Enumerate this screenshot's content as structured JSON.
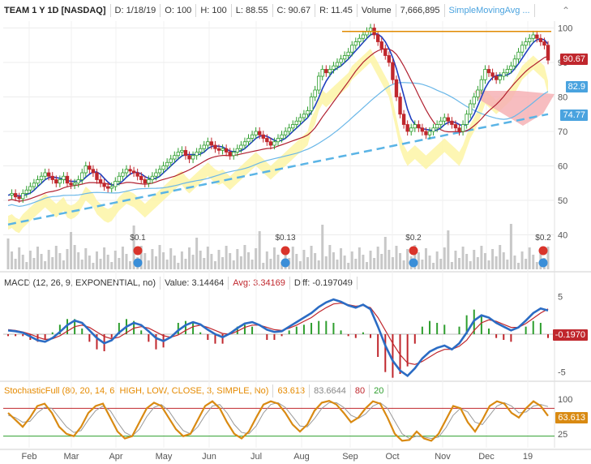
{
  "main_header": {
    "symbol": "TEAM 1 Y 1D [NASDAQ]",
    "date": "D: 1/18/19",
    "open": "O: 100",
    "high": "H: 100",
    "low": "L: 88.55",
    "close": "C: 90.67",
    "range": "R: 11.45",
    "volume_label": "Volume",
    "volume_value": "7,666,895",
    "sma_label": "SimpleMovingAvg ..."
  },
  "macd_header": {
    "study": "MACD (12, 26, 9, EXPONENTIAL, no)",
    "value": "Value: 3.14464",
    "avg": "Avg: 3.34169",
    "diff": "Diff: -0.197049"
  },
  "stoch_header": {
    "study": "StochasticFull (80, 20, 14, 6, HIGH, LOW, CLOSE, 3, SIMPLE, No)",
    "v1": "63.613",
    "v2": "83.6644",
    "v3": "80",
    "v4": "20"
  },
  "price_tags": {
    "last": "90.67",
    "sma_a": "82.9",
    "sma_b": "74.77",
    "macd_diff": "-0.1970",
    "stoch_last": "63.613"
  },
  "dividend_labels": [
    "$0.1",
    "$0.13",
    "$0.2",
    "$0.2"
  ],
  "colors": {
    "candle_up": "#2e9e2e",
    "candle_down": "#c0272d",
    "ma_blue": "#1f3fbf",
    "ma_red": "#b02030",
    "ma_light": "#6ab7e8",
    "ma_dash": "#5ab4e6",
    "cloud_yellow": "#fdf5a6",
    "cloud_red": "#f6b2b5",
    "macd_line": "#2b6cc4",
    "macd_avg": "#c0272d",
    "stoch_k": "#d98a12",
    "stoch_d": "#999999",
    "resistance": "#e08a00"
  },
  "chart_data": {
    "type": "candlestick",
    "x_ticks": [
      "Feb",
      "Mar",
      "Apr",
      "May",
      "Jun",
      "Jul",
      "Aug",
      "Sep",
      "Oct",
      "Nov",
      "Dec",
      "19"
    ],
    "price_axis": {
      "ticks": [
        40,
        50,
        60,
        70,
        80,
        90,
        100
      ],
      "range": [
        30,
        102
      ]
    },
    "close_path": [
      51.5,
      52,
      51,
      50.5,
      52,
      53,
      54,
      55,
      56,
      57,
      58,
      57,
      56,
      55,
      56,
      57,
      55,
      54.5,
      55,
      56,
      58,
      60,
      59,
      58,
      56,
      55,
      54,
      53.5,
      54,
      55.5,
      57,
      58,
      59,
      58.5,
      58,
      57,
      56,
      55,
      56,
      57,
      58,
      59,
      60,
      61,
      62,
      63,
      64,
      64.5,
      63,
      62,
      63,
      64,
      65,
      66,
      67,
      66,
      65,
      64.5,
      65,
      64,
      63,
      64,
      65,
      66,
      67,
      68,
      69,
      70,
      69,
      68,
      67,
      66,
      67,
      68,
      69,
      70,
      71,
      72,
      73,
      74,
      75,
      76,
      80,
      82,
      86,
      88,
      87,
      88,
      89,
      90,
      91,
      92,
      93,
      95,
      96,
      97,
      98,
      99,
      100,
      98,
      96,
      94,
      92,
      90,
      85,
      80,
      75,
      72,
      70,
      71,
      72,
      71,
      70,
      69,
      70,
      71,
      72,
      73,
      74,
      73,
      72,
      71,
      70,
      72,
      75,
      78,
      80,
      82,
      85,
      88,
      87,
      86,
      85,
      86,
      87,
      88,
      89,
      91,
      93,
      95,
      96,
      97,
      98,
      97,
      96,
      95,
      90.67
    ],
    "resistance_level": 99,
    "volume_axis": {
      "note": "bars in lower part of price pane"
    },
    "macd": {
      "axis_ticks": [
        5,
        -5
      ],
      "value": 3.14464,
      "avg": 3.34169,
      "diff": -0.197049,
      "macd_path": [
        0.5,
        0.4,
        0.2,
        -0.3,
        -0.8,
        -1.0,
        -0.5,
        0.3,
        1.2,
        1.8,
        1.5,
        0.5,
        -0.5,
        -1.2,
        -0.8,
        0.2,
        1.0,
        1.5,
        1.2,
        0.4,
        -0.5,
        -0.9,
        -0.4,
        0.5,
        1.2,
        1.6,
        1.3,
        0.6,
        0.0,
        -0.4,
        0.1,
        0.8,
        1.4,
        1.6,
        1.2,
        0.6,
        0.3,
        0.4,
        1.0,
        1.6,
        2.2,
        2.8,
        3.6,
        4.2,
        4.6,
        4.3,
        3.8,
        3.5,
        3.9,
        3.3,
        1.0,
        -1.5,
        -3.5,
        -4.8,
        -5.5,
        -4.5,
        -3.2,
        -2.3,
        -1.8,
        -1.5,
        -2.0,
        -1.2,
        0.2,
        1.8,
        2.5,
        2.2,
        1.5,
        1.0,
        0.5,
        0.9,
        1.8,
        2.8,
        3.4,
        3.14
      ],
      "avg_path": [
        0.6,
        0.5,
        0.3,
        0.0,
        -0.4,
        -0.7,
        -0.6,
        -0.2,
        0.4,
        1.0,
        1.2,
        0.9,
        0.3,
        -0.3,
        -0.6,
        -0.4,
        0.2,
        0.8,
        1.0,
        0.8,
        0.3,
        -0.2,
        -0.4,
        -0.1,
        0.5,
        1.0,
        1.2,
        0.9,
        0.5,
        0.1,
        0.0,
        0.4,
        0.9,
        1.2,
        1.2,
        0.9,
        0.6,
        0.5,
        0.8,
        1.2,
        1.7,
        2.2,
        2.9,
        3.5,
        4.0,
        4.1,
        3.9,
        3.7,
        3.8,
        3.5,
        2.2,
        0.5,
        -1.2,
        -2.7,
        -3.8,
        -4.0,
        -3.6,
        -3.0,
        -2.4,
        -2.0,
        -2.0,
        -1.6,
        -0.8,
        0.5,
        1.5,
        1.9,
        1.7,
        1.3,
        0.9,
        0.9,
        1.4,
        2.1,
        2.8,
        3.34
      ]
    },
    "stochastic": {
      "axis_ticks": [
        100,
        25
      ],
      "levels": [
        80,
        20
      ],
      "k_path": [
        70,
        55,
        40,
        60,
        85,
        90,
        70,
        40,
        25,
        20,
        40,
        70,
        85,
        90,
        60,
        30,
        15,
        20,
        50,
        80,
        92,
        85,
        60,
        35,
        20,
        25,
        55,
        85,
        95,
        80,
        50,
        25,
        15,
        30,
        60,
        88,
        95,
        90,
        70,
        45,
        30,
        45,
        75,
        92,
        96,
        88,
        70,
        50,
        60,
        80,
        95,
        90,
        60,
        25,
        10,
        12,
        30,
        15,
        10,
        25,
        55,
        85,
        80,
        50,
        30,
        55,
        85,
        95,
        90,
        70,
        60,
        80,
        95,
        85,
        63.6
      ],
      "d_path": [
        65,
        60,
        50,
        52,
        70,
        82,
        80,
        60,
        40,
        28,
        32,
        55,
        75,
        85,
        75,
        50,
        28,
        20,
        35,
        62,
        82,
        88,
        75,
        52,
        32,
        25,
        40,
        65,
        85,
        88,
        70,
        45,
        28,
        25,
        42,
        70,
        88,
        92,
        82,
        62,
        42,
        40,
        58,
        80,
        92,
        92,
        82,
        65,
        58,
        68,
        85,
        92,
        80,
        52,
        25,
        15,
        20,
        18,
        15,
        18,
        38,
        65,
        80,
        72,
        50,
        45,
        65,
        85,
        92,
        85,
        70,
        72,
        85,
        88,
        83.7
      ]
    }
  }
}
